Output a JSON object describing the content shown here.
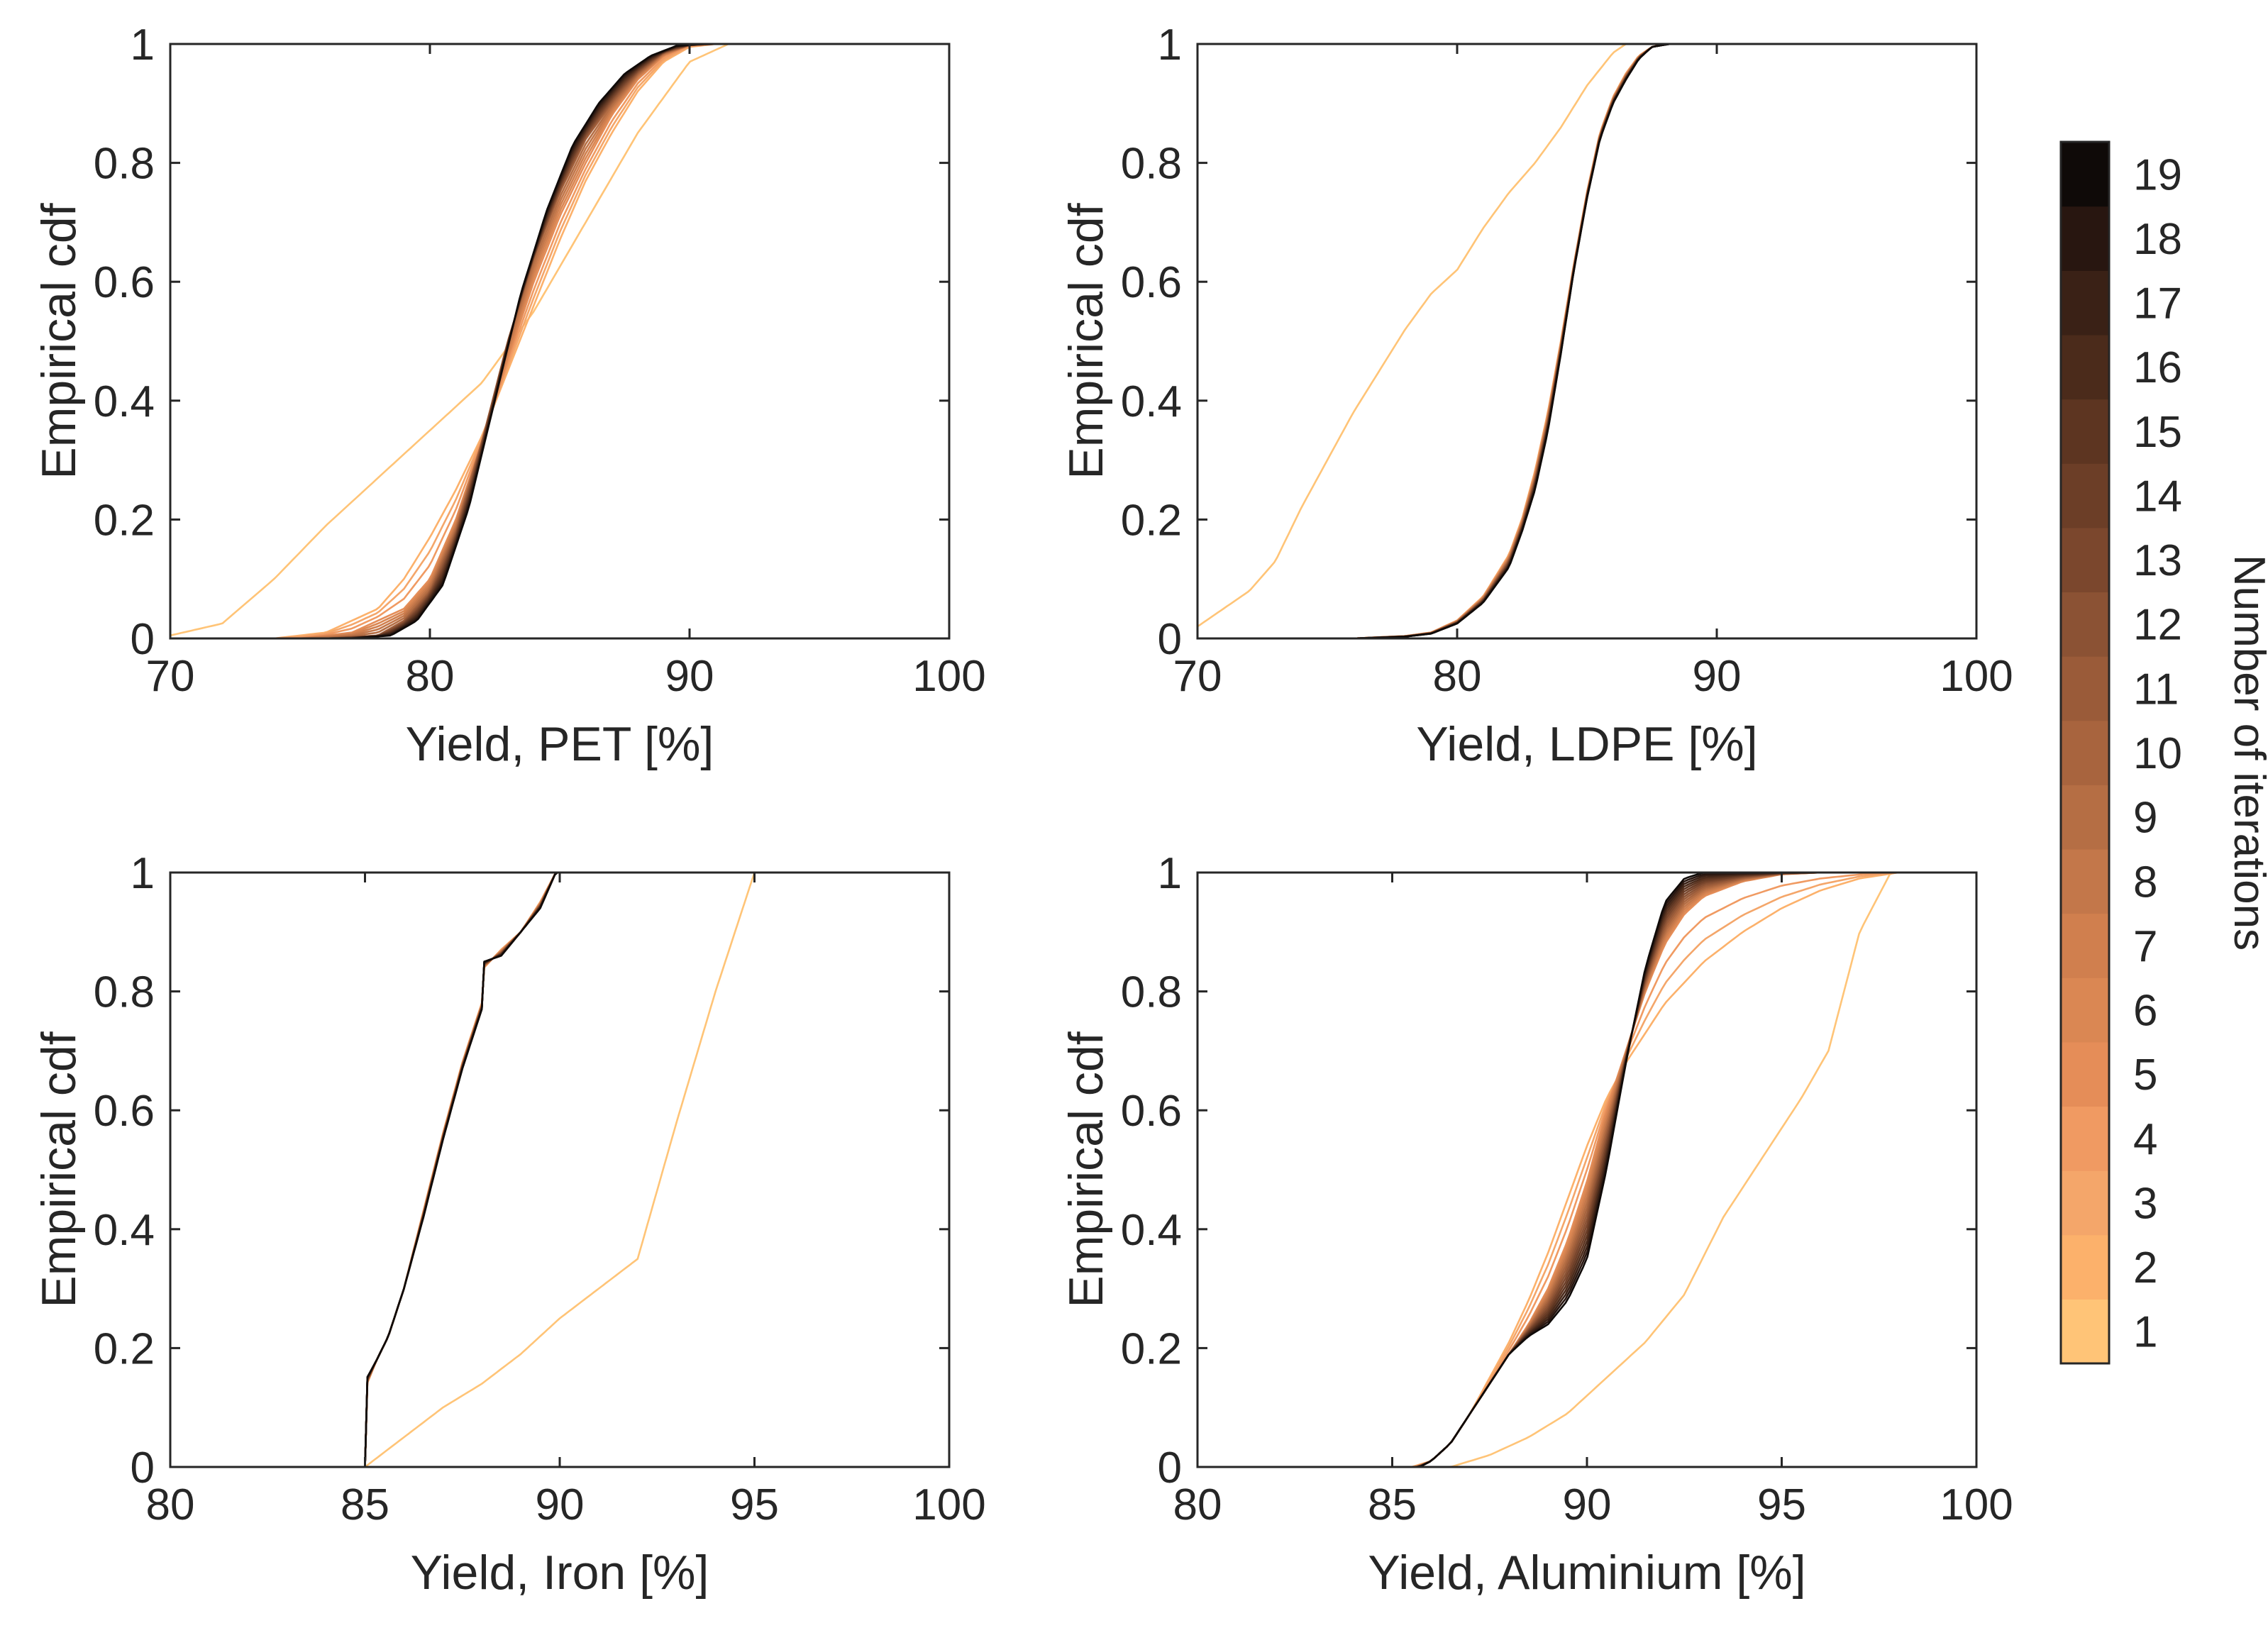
{
  "figure": {
    "colorbar": {
      "label": "Number of iterations",
      "ticks": [
        1,
        2,
        3,
        4,
        5,
        6,
        7,
        8,
        9,
        10,
        11,
        12,
        13,
        14,
        15,
        16,
        17,
        18,
        19
      ],
      "colors": [
        "#ffc477",
        "#fcb16b",
        "#f4a66a",
        "#f09a62",
        "#e58d58",
        "#da8753",
        "#d07f4e",
        "#c3774a",
        "#b56e44",
        "#a8643e",
        "#9a5b39",
        "#8b5234",
        "#7b472d",
        "#6c3e27",
        "#5d3521",
        "#4b2b1b",
        "#3a2116",
        "#281610",
        "#0f0a08"
      ]
    }
  },
  "chart_data": [
    {
      "type": "line",
      "ylabel": "Empirical cdf",
      "xlabel": "Yield, PET [%]",
      "xlim": [
        70,
        100
      ],
      "ylim": [
        0,
        1
      ],
      "xticks": [
        "70",
        "80",
        "90",
        "100"
      ],
      "yticks": [
        "0",
        "0.2",
        "0.4",
        "0.6",
        "0.8",
        "1"
      ],
      "series": [
        {
          "name": "iteration 1",
          "x": [
            70,
            72,
            74,
            76,
            78,
            80,
            82,
            84,
            86,
            88,
            90,
            91.5
          ],
          "y": [
            0.005,
            0.025,
            0.1,
            0.19,
            0.27,
            0.35,
            0.43,
            0.55,
            0.7,
            0.85,
            0.97,
            1
          ]
        },
        {
          "name": "iteration 2",
          "x": [
            74,
            76,
            78,
            79,
            80,
            81,
            82,
            83,
            84,
            85,
            86,
            87,
            88,
            89,
            90,
            91
          ],
          "y": [
            0,
            0.01,
            0.05,
            0.1,
            0.17,
            0.25,
            0.34,
            0.45,
            0.56,
            0.67,
            0.77,
            0.85,
            0.92,
            0.97,
            0.995,
            1
          ]
        },
        {
          "name": "iteration 5",
          "x": [
            75,
            77,
            79,
            80,
            81,
            82,
            83,
            84,
            85,
            86,
            87,
            88,
            89,
            90,
            91
          ],
          "y": [
            0,
            0.01,
            0.05,
            0.1,
            0.2,
            0.33,
            0.47,
            0.6,
            0.71,
            0.8,
            0.88,
            0.94,
            0.98,
            0.998,
            1
          ]
        },
        {
          "name": "iteration 10",
          "x": [
            76,
            78,
            79,
            80,
            81,
            82,
            83,
            84,
            85,
            86,
            87,
            88,
            89,
            90,
            91
          ],
          "y": [
            0,
            0.005,
            0.03,
            0.08,
            0.18,
            0.33,
            0.5,
            0.64,
            0.75,
            0.84,
            0.9,
            0.95,
            0.985,
            0.998,
            1
          ]
        },
        {
          "name": "iteration 19",
          "x": [
            77,
            78.5,
            79.5,
            80.5,
            81.5,
            82.5,
            83.5,
            84.5,
            85.5,
            86.5,
            87.5,
            88.5,
            89.5,
            90.5
          ],
          "y": [
            0,
            0.005,
            0.03,
            0.09,
            0.22,
            0.4,
            0.58,
            0.72,
            0.83,
            0.9,
            0.95,
            0.98,
            0.997,
            1
          ]
        }
      ]
    },
    {
      "type": "line",
      "ylabel": "Empirical cdf",
      "xlabel": "Yield, LDPE [%]",
      "xlim": [
        70,
        100
      ],
      "ylim": [
        0,
        1
      ],
      "xticks": [
        "70",
        "80",
        "90",
        "100"
      ],
      "yticks": [
        "0",
        "0.2",
        "0.4",
        "0.6",
        "0.8",
        "1"
      ],
      "series": [
        {
          "name": "iteration 1",
          "x": [
            70,
            72,
            73,
            74,
            75,
            76,
            77,
            78,
            79,
            80,
            81,
            82,
            83,
            84,
            85,
            86,
            86.5
          ],
          "y": [
            0.02,
            0.08,
            0.13,
            0.22,
            0.3,
            0.38,
            0.45,
            0.52,
            0.58,
            0.62,
            0.69,
            0.75,
            0.8,
            0.86,
            0.93,
            0.985,
            1
          ]
        },
        {
          "name": "iteration 3",
          "x": [
            76,
            78,
            79,
            80,
            81,
            82,
            82.5,
            83,
            83.5,
            84,
            84.5,
            85,
            85.5,
            86,
            86.5,
            87,
            87.5,
            88
          ],
          "y": [
            0,
            0.004,
            0.01,
            0.03,
            0.07,
            0.14,
            0.2,
            0.28,
            0.38,
            0.5,
            0.63,
            0.75,
            0.85,
            0.91,
            0.95,
            0.98,
            0.995,
            1
          ]
        },
        {
          "name": "iteration 19",
          "x": [
            76,
            78,
            79,
            80,
            81,
            82,
            82.5,
            83,
            83.5,
            84,
            84.5,
            85,
            85.5,
            86,
            86.5,
            87,
            87.5,
            88.2
          ],
          "y": [
            0,
            0.003,
            0.008,
            0.025,
            0.06,
            0.12,
            0.18,
            0.25,
            0.35,
            0.48,
            0.62,
            0.74,
            0.84,
            0.9,
            0.94,
            0.975,
            0.995,
            1
          ]
        }
      ]
    },
    {
      "type": "line",
      "ylabel": "Empirical cdf",
      "xlabel": "Yield, Iron [%]",
      "xlim": [
        80,
        100
      ],
      "ylim": [
        0,
        1
      ],
      "xticks": [
        "80",
        "85",
        "90",
        "95",
        "100"
      ],
      "yticks": [
        "0",
        "0.2",
        "0.4",
        "0.6",
        "0.8",
        "1"
      ],
      "series": [
        {
          "name": "iteration 1",
          "x": [
            85,
            86,
            87,
            88,
            89,
            90,
            91,
            92,
            93,
            94,
            95
          ],
          "y": [
            0,
            0.05,
            0.1,
            0.14,
            0.19,
            0.25,
            0.3,
            0.35,
            0.58,
            0.8,
            1
          ]
        },
        {
          "name": "iteration 3",
          "x": [
            85,
            85.05,
            85.3,
            85.6,
            86,
            86.5,
            87,
            87.5,
            88,
            88.05,
            88.5,
            89,
            89.5,
            89.9
          ],
          "y": [
            0,
            0.14,
            0.18,
            0.22,
            0.3,
            0.43,
            0.56,
            0.68,
            0.78,
            0.84,
            0.87,
            0.9,
            0.95,
            1
          ]
        },
        {
          "name": "iteration 19",
          "x": [
            85,
            85.05,
            85.3,
            85.6,
            86,
            86.5,
            87,
            87.5,
            88,
            88.05,
            88.5,
            89,
            89.5,
            89.9
          ],
          "y": [
            0,
            0.15,
            0.18,
            0.22,
            0.3,
            0.42,
            0.55,
            0.67,
            0.77,
            0.85,
            0.86,
            0.9,
            0.94,
            1
          ]
        }
      ]
    },
    {
      "type": "line",
      "ylabel": "Empirical cdf",
      "xlabel": "Yield, Aluminium [%]",
      "xlim": [
        80,
        100
      ],
      "ylim": [
        0,
        1
      ],
      "xticks": [
        "80",
        "85",
        "90",
        "95",
        "100"
      ],
      "yticks": [
        "0",
        "0.2",
        "0.4",
        "0.6",
        "0.8",
        "1"
      ],
      "series": [
        {
          "name": "iteration 1",
          "x": [
            80,
            86.5,
            87.5,
            88.5,
            89.5,
            90.5,
            91.5,
            92.5,
            93.5,
            94.5,
            95.5,
            96.2,
            97,
            97.8
          ],
          "y": [
            0,
            0,
            0.02,
            0.05,
            0.09,
            0.15,
            0.21,
            0.29,
            0.42,
            0.52,
            0.62,
            0.7,
            0.9,
            1
          ]
        },
        {
          "name": "iteration 2",
          "x": [
            80,
            85.5,
            86,
            86.5,
            87,
            87.5,
            88,
            88.5,
            89,
            89.5,
            90,
            90.5,
            91,
            91.5,
            92,
            93,
            94,
            95,
            96,
            97,
            98
          ],
          "y": [
            0,
            0,
            0.01,
            0.04,
            0.09,
            0.15,
            0.21,
            0.28,
            0.36,
            0.45,
            0.54,
            0.62,
            0.68,
            0.73,
            0.78,
            0.85,
            0.9,
            0.94,
            0.97,
            0.99,
            1
          ]
        },
        {
          "name": "iteration 5",
          "x": [
            80,
            85.6,
            86,
            86.5,
            87,
            87.5,
            88,
            88.5,
            89,
            89.5,
            90,
            90.5,
            91,
            91.5,
            92,
            92.5,
            93,
            94,
            95,
            96
          ],
          "y": [
            0,
            0,
            0.01,
            0.04,
            0.09,
            0.14,
            0.19,
            0.24,
            0.3,
            0.38,
            0.48,
            0.6,
            0.7,
            0.8,
            0.88,
            0.93,
            0.96,
            0.985,
            0.997,
            1
          ]
        },
        {
          "name": "iteration 19",
          "x": [
            80,
            85.7,
            86,
            86.5,
            87,
            87.5,
            88,
            88.5,
            89,
            89.5,
            90,
            90.5,
            91,
            91.5,
            92,
            92.5,
            93
          ],
          "y": [
            0,
            0,
            0.01,
            0.04,
            0.09,
            0.14,
            0.19,
            0.22,
            0.24,
            0.28,
            0.35,
            0.5,
            0.68,
            0.84,
            0.95,
            0.99,
            1
          ]
        }
      ]
    }
  ]
}
